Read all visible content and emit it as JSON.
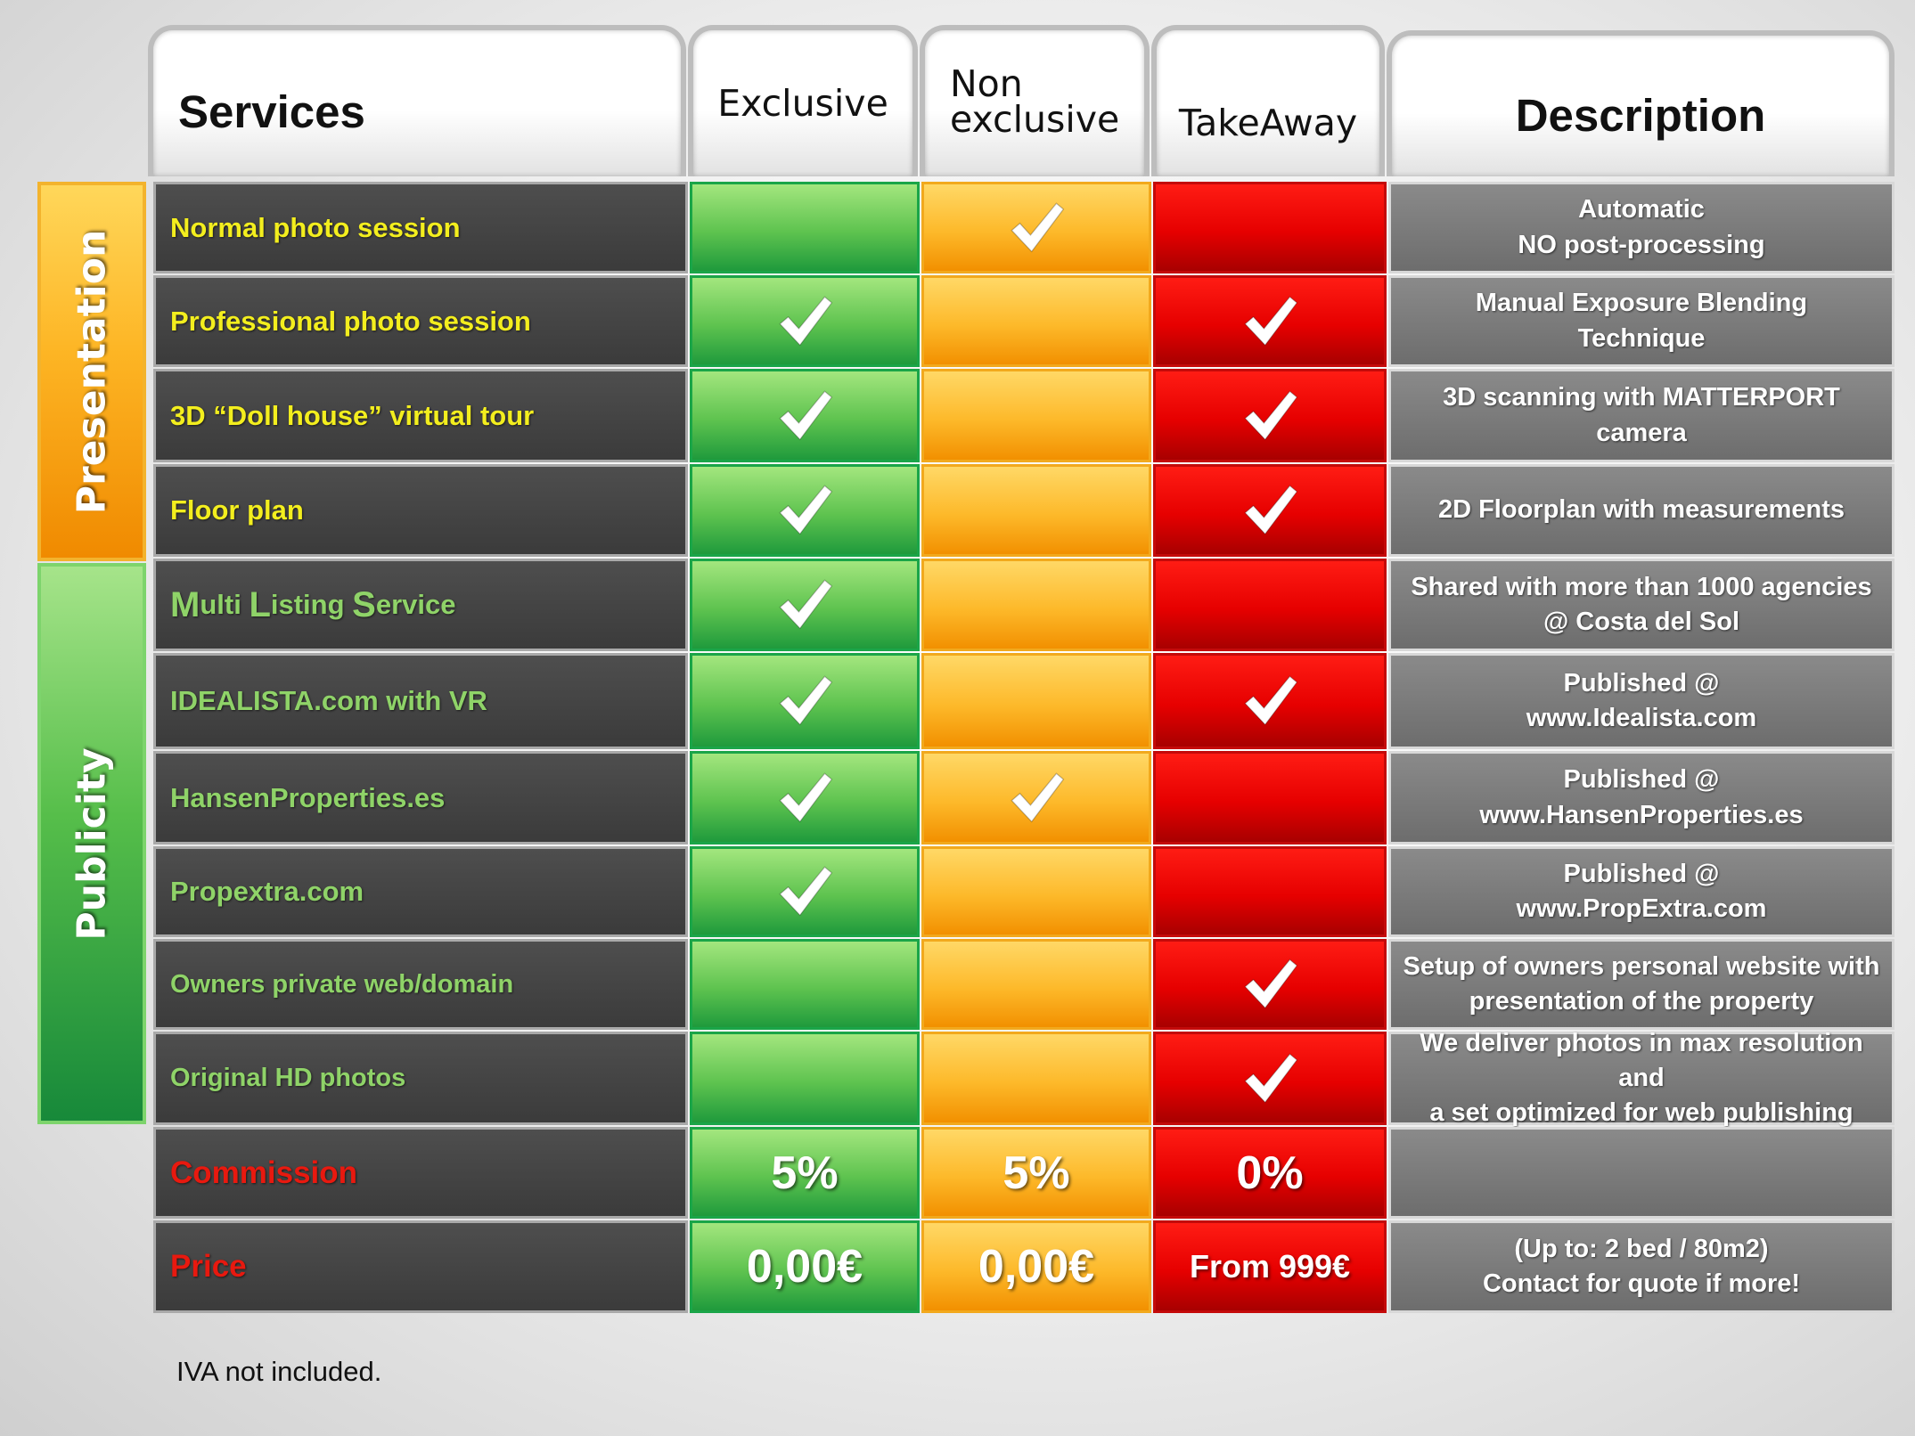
{
  "headers": {
    "services": "Services",
    "exclusive": "Exclusive",
    "non_exclusive_line1": "Non",
    "non_exclusive_line2": "exclusive",
    "takeaway": "TakeAway",
    "description": "Description"
  },
  "sections": {
    "presentation": "Presentation",
    "publicity": "Publicity"
  },
  "rows": [
    {
      "service": "Normal photo session",
      "exclusive": false,
      "non_exclusive": true,
      "takeaway": false,
      "description_line1": "Automatic",
      "description_line2": "NO post-processing"
    },
    {
      "service": "Professional photo session",
      "exclusive": true,
      "non_exclusive": false,
      "takeaway": true,
      "description_line1": "Manual Exposure Blending",
      "description_line2": "Technique"
    },
    {
      "service": "3D “Doll house” virtual tour",
      "exclusive": true,
      "non_exclusive": false,
      "takeaway": true,
      "description_line1": "3D scanning with MATTERPORT",
      "description_line2": "camera"
    },
    {
      "service": "Floor plan",
      "exclusive": true,
      "non_exclusive": false,
      "takeaway": true,
      "description_line1": "2D Floorplan with measurements",
      "description_line2": ""
    },
    {
      "service_parts": [
        "M",
        "ulti ",
        "L",
        "isting ",
        "S",
        "ervice"
      ],
      "exclusive": true,
      "non_exclusive": false,
      "takeaway": false,
      "description_line1": "Shared with more than 1000 agencies",
      "description_line2": "@ Costa del Sol"
    },
    {
      "service": "IDEALISTA.com with VR",
      "exclusive": true,
      "non_exclusive": false,
      "takeaway": true,
      "description_line1": "Published @",
      "description_line2": "www.Idealista.com"
    },
    {
      "service": "HansenProperties.es",
      "exclusive": true,
      "non_exclusive": true,
      "takeaway": false,
      "description_line1": "Published @",
      "description_line2": "www.HansenProperties.es"
    },
    {
      "service": "Propextra.com",
      "exclusive": true,
      "non_exclusive": false,
      "takeaway": false,
      "description_line1": "Published @",
      "description_line2": "www.PropExtra.com"
    },
    {
      "service": "Owners private web/domain",
      "exclusive": false,
      "non_exclusive": false,
      "takeaway": true,
      "description_line1": "Setup of owners personal website with",
      "description_line2": "presentation of the property"
    },
    {
      "service": "Original HD photos",
      "exclusive": false,
      "non_exclusive": false,
      "takeaway": true,
      "description_line1": "We deliver photos in max resolution and",
      "description_line2": "a set optimized for web publishing"
    }
  ],
  "commission": {
    "label": "Commission",
    "exclusive": "5%",
    "non_exclusive": "5%",
    "takeaway": "0%",
    "description": ""
  },
  "price": {
    "label": "Price",
    "exclusive": "0,00€",
    "non_exclusive": "0,00€",
    "takeaway": "From 999€",
    "description_line1": "(Up to: 2 bed / 80m2)",
    "description_line2": "Contact for quote if more!"
  },
  "footnote": "IVA not included.",
  "colors": {
    "exclusive": "#5ec34f",
    "non_exclusive": "#fdb92a",
    "takeaway": "#e60000",
    "description": "#7a7a7a",
    "service_text_presentation": "#f3ee1e",
    "service_text_publicity": "#8fd368",
    "service_text_pricing": "#e8190f"
  },
  "icons": {
    "included": "checkmark-icon"
  }
}
